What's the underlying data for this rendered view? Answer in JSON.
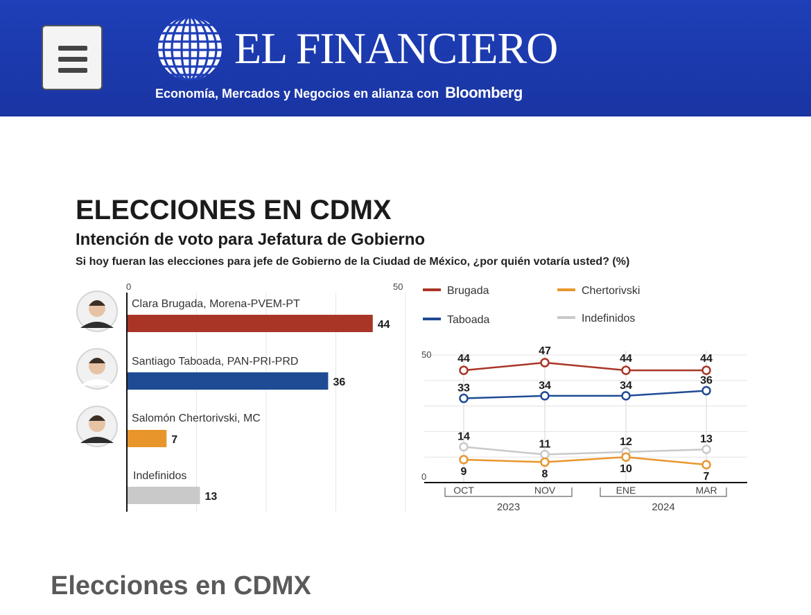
{
  "header": {
    "brand": "EL FINANCIERO",
    "tagline": "Economía, Mercados y Negocios en alianza con",
    "partner": "Bloomberg",
    "colors": {
      "background": "#1e3fb8",
      "text": "#ffffff"
    },
    "menu_icon": "hamburger-menu-icon",
    "logo_icon": "globe-logo-icon"
  },
  "infographic": {
    "title": "ELECCIONES EN CDMX",
    "subtitle": "Intención de voto para Jefatura de Gobierno",
    "question": "Si hoy fueran las elecciones para jefe de Gobierno de la Ciudad de México, ¿por quién votaría usted? (%)"
  },
  "chart_data": [
    {
      "type": "bar",
      "orientation": "horizontal",
      "axis_ticks": [
        "0",
        "50"
      ],
      "xlim": [
        0,
        50
      ],
      "grid": true,
      "categories": [
        "Clara Brugada, Morena-PVEM-PT",
        "Santiago Taboada, PAN-PRI-PRD",
        "Salomón Chertorivski, MC",
        "Indefinidos"
      ],
      "values": [
        44,
        36,
        7,
        13
      ],
      "colors": [
        "#a83526",
        "#1f4b95",
        "#e8962c",
        "#c9c9c9"
      ],
      "has_photo": [
        true,
        true,
        true,
        false
      ]
    },
    {
      "type": "line",
      "legend": [
        "Brugada",
        "Chertorivski",
        "Taboada",
        "Indefinidos"
      ],
      "legend_placement": "top",
      "x": [
        "OCT",
        "NOV",
        "ENE",
        "MAR"
      ],
      "year_groups": [
        {
          "label": "2023",
          "months": [
            "OCT",
            "NOV"
          ]
        },
        {
          "label": "2024",
          "months": [
            "ENE",
            "MAR"
          ]
        }
      ],
      "y_ticks": [
        "50",
        "0"
      ],
      "ylim": [
        0,
        50
      ],
      "grid": true,
      "series": [
        {
          "name": "Brugada",
          "values": [
            44,
            47,
            44,
            44
          ],
          "color": "#a83526"
        },
        {
          "name": "Taboada",
          "values": [
            33,
            34,
            34,
            36
          ],
          "color": "#1f4b95"
        },
        {
          "name": "Indefinidos",
          "values": [
            14,
            11,
            12,
            13
          ],
          "color": "#c9c9c9"
        },
        {
          "name": "Chertorivski",
          "values": [
            9,
            8,
            10,
            7
          ],
          "color": "#e8962c"
        }
      ]
    }
  ],
  "page": {
    "heading": "Elecciones en CDMX"
  }
}
